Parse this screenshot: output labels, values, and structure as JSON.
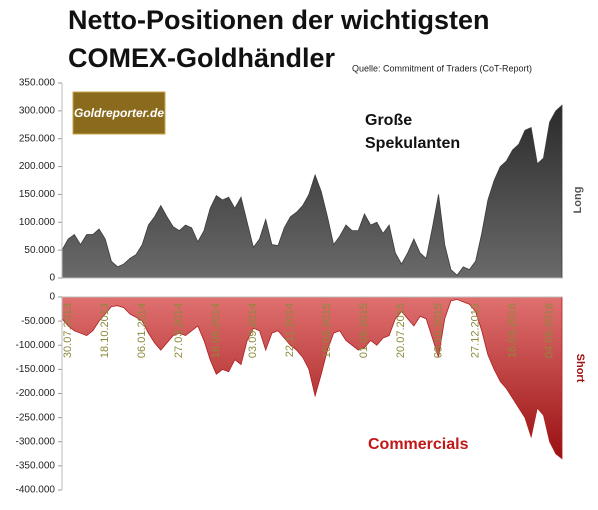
{
  "title_lines": [
    "Netto-Positionen der wichtigsten",
    "COMEX-Goldhändler"
  ],
  "source": "Quelle: Commitment of Traders (CoT-Report)",
  "logo": "Goldreporter.de",
  "chart_data": [
    {
      "type": "area",
      "annotation": [
        "Große",
        "Spekulanten"
      ],
      "axis_label": "Long",
      "series": [
        {
          "name": "Große Spekulanten",
          "color": "#3c3c3c",
          "values": [
            50000,
            70000,
            78000,
            60000,
            78000,
            78000,
            88000,
            70000,
            30000,
            20000,
            25000,
            35000,
            42000,
            60000,
            95000,
            110000,
            130000,
            110000,
            92000,
            85000,
            95000,
            90000,
            65000,
            85000,
            125000,
            148000,
            140000,
            145000,
            125000,
            145000,
            100000,
            55000,
            70000,
            105000,
            60000,
            58000,
            90000,
            110000,
            118000,
            130000,
            150000,
            185000,
            155000,
            110000,
            60000,
            75000,
            95000,
            85000,
            85000,
            115000,
            95000,
            100000,
            80000,
            95000,
            45000,
            25000,
            45000,
            70000,
            45000,
            35000,
            90000,
            150000,
            60000,
            15000,
            5000,
            20000,
            15000,
            30000,
            80000,
            140000,
            175000,
            200000,
            210000,
            230000,
            240000,
            265000,
            270000,
            205000,
            215000,
            280000,
            300000,
            310000
          ]
        }
      ],
      "ylim": [
        0,
        350000
      ],
      "yticks": [
        0,
        {
          "value": 50000,
          "label": "50.000"
        },
        {
          "value": 100000,
          "label": "100.000"
        },
        {
          "value": 150000,
          "label": "150.000"
        },
        {
          "value": 200000,
          "label": "200.000"
        },
        {
          "value": 250000,
          "label": "250.000"
        },
        {
          "value": 300000,
          "label": "300.000"
        },
        {
          "value": 350000,
          "label": "350.000"
        }
      ]
    },
    {
      "type": "area",
      "annotation": [
        "Commercials"
      ],
      "axis_label": "Short",
      "categories": [
        "30.07.2013",
        null,
        null,
        null,
        null,
        null,
        "18.10.2013",
        null,
        null,
        null,
        null,
        null,
        "06.01.2014",
        null,
        null,
        null,
        null,
        null,
        "27.03.2014",
        null,
        null,
        null,
        null,
        null,
        "16.06.2014",
        null,
        null,
        null,
        null,
        null,
        "03.09.2014",
        null,
        null,
        null,
        null,
        null,
        "22.11.2014",
        null,
        null,
        null,
        null,
        null,
        "10.02.2015",
        null,
        null,
        null,
        null,
        null,
        "01.05.2015",
        null,
        null,
        null,
        null,
        null,
        "20.07.2015",
        null,
        null,
        null,
        null,
        null,
        "08.10.2015",
        null,
        null,
        null,
        null,
        null,
        "27.12.2015",
        null,
        null,
        null,
        null,
        null,
        "16.03.2016",
        null,
        null,
        null,
        null,
        null,
        "04.06.2016",
        null,
        null,
        null
      ],
      "series": [
        {
          "name": "Commercials",
          "color": "#b01e1e",
          "values": [
            -45000,
            -60000,
            -70000,
            -75000,
            -80000,
            -70000,
            -50000,
            -35000,
            -20000,
            -18000,
            -22000,
            -35000,
            -42000,
            -50000,
            -75000,
            -95000,
            -110000,
            -95000,
            -80000,
            -75000,
            -80000,
            -70000,
            -60000,
            -90000,
            -130000,
            -160000,
            -150000,
            -155000,
            -130000,
            -140000,
            -90000,
            -65000,
            -70000,
            -110000,
            -75000,
            -70000,
            -85000,
            -100000,
            -110000,
            -125000,
            -150000,
            -205000,
            -160000,
            -110000,
            -75000,
            -70000,
            -90000,
            -100000,
            -110000,
            -105000,
            -90000,
            -100000,
            -85000,
            -80000,
            -45000,
            -30000,
            -45000,
            -60000,
            -40000,
            -45000,
            -85000,
            -125000,
            -45000,
            -8000,
            -5000,
            -10000,
            -15000,
            -30000,
            -70000,
            -120000,
            -150000,
            -175000,
            -190000,
            -210000,
            -230000,
            -250000,
            -290000,
            -230000,
            -245000,
            -300000,
            -325000,
            -335000
          ]
        }
      ],
      "ylim": [
        -400000,
        0
      ],
      "yticks": [
        {
          "value": -400000,
          "label": "-400.000"
        },
        {
          "value": -350000,
          "label": "-350.000"
        },
        {
          "value": -300000,
          "label": "-300.000"
        },
        {
          "value": -250000,
          "label": "-250.000"
        },
        {
          "value": -200000,
          "label": "-200.000"
        },
        {
          "value": -150000,
          "label": "-150.000"
        },
        {
          "value": -100000,
          "label": "-100.000"
        },
        {
          "value": -50000,
          "label": "-50.000"
        },
        0
      ]
    }
  ]
}
